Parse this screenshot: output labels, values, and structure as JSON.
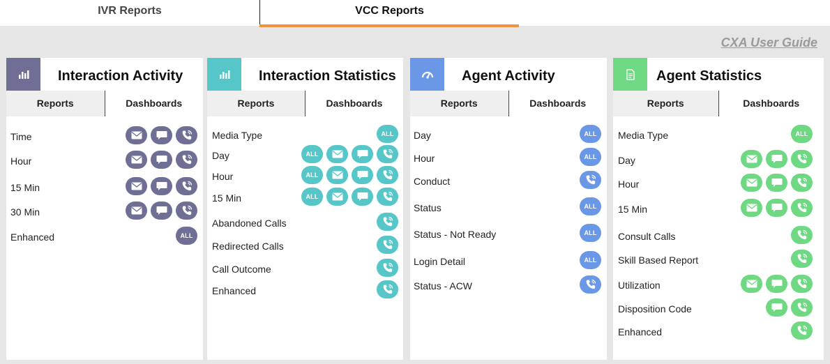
{
  "top_tabs": [
    "IVR Reports",
    "VCC Reports"
  ],
  "guide_link": "CXA User Guide",
  "subtabs": {
    "reports": "Reports",
    "dashboards": "Dashboards"
  },
  "colors": {
    "interaction_activity": "#6f6f95",
    "interaction_statistics": "#56c6c8",
    "agent_activity": "#6a97e6",
    "agent_statistics": "#6fd883",
    "active_tab_underline": "#f0923b"
  },
  "all_label": "ALL",
  "panels": [
    {
      "title": "Interaction Activity",
      "icon": "bar-chart-icon",
      "rows": [
        {
          "label": "Time",
          "buttons": [
            "email-icon",
            "chat-icon",
            "phone-icon"
          ]
        },
        {
          "label": "Hour",
          "buttons": [
            "email-icon",
            "chat-icon",
            "phone-icon"
          ]
        },
        {
          "label": "15 Min",
          "buttons": [
            "email-icon",
            "chat-icon",
            "phone-icon"
          ]
        },
        {
          "label": "30 Min",
          "buttons": [
            "email-icon",
            "chat-icon",
            "phone-icon"
          ]
        },
        {
          "label": "Enhanced",
          "buttons": [
            "all"
          ]
        }
      ]
    },
    {
      "title": "Interaction Statistics",
      "icon": "bar-chart-icon",
      "rows": [
        {
          "label": "Media Type",
          "buttons": [
            "all"
          ]
        },
        {
          "label": "Day",
          "buttons": [
            "all",
            "email-icon",
            "chat-icon",
            "phone-icon"
          ]
        },
        {
          "label": "Hour",
          "buttons": [
            "all",
            "email-icon",
            "chat-icon",
            "phone-icon"
          ]
        },
        {
          "label": "15 Min",
          "buttons": [
            "all",
            "email-icon",
            "chat-icon",
            "phone-icon"
          ]
        },
        {
          "label": "Abandoned Calls",
          "buttons": [
            "phone-icon"
          ]
        },
        {
          "label": "Redirected Calls",
          "buttons": [
            "phone-icon"
          ]
        },
        {
          "label": "Call Outcome",
          "buttons": [
            "phone-icon"
          ]
        },
        {
          "label": "Enhanced",
          "buttons": [
            "phone-icon"
          ]
        }
      ]
    },
    {
      "title": "Agent Activity",
      "icon": "gauge-icon",
      "rows": [
        {
          "label": "Day",
          "buttons": [
            "all"
          ]
        },
        {
          "label": "Hour",
          "buttons": [
            "all"
          ]
        },
        {
          "label": "Conduct",
          "buttons": [
            "phone-icon"
          ]
        },
        {
          "label": "Status",
          "buttons": [
            "all"
          ]
        },
        {
          "label": "Status - Not Ready",
          "buttons": [
            "all"
          ]
        },
        {
          "label": "Login Detail",
          "buttons": [
            "all"
          ]
        },
        {
          "label": "Status - ACW",
          "buttons": [
            "phone-icon"
          ]
        }
      ]
    },
    {
      "title": "Agent Statistics",
      "icon": "document-icon",
      "rows": [
        {
          "label": "Media Type",
          "buttons": [
            "all"
          ]
        },
        {
          "label": "Day",
          "buttons": [
            "email-icon",
            "chat-icon",
            "phone-icon"
          ]
        },
        {
          "label": "Hour",
          "buttons": [
            "email-icon",
            "chat-icon",
            "phone-icon"
          ]
        },
        {
          "label": "15 Min",
          "buttons": [
            "email-icon",
            "chat-icon",
            "phone-icon"
          ]
        },
        {
          "label": "Consult Calls",
          "buttons": [
            "phone-icon"
          ]
        },
        {
          "label": "Skill Based Report",
          "buttons": [
            "phone-icon"
          ]
        },
        {
          "label": "Utilization",
          "buttons": [
            "email-icon",
            "chat-icon",
            "phone-icon"
          ]
        },
        {
          "label": "Disposition Code",
          "buttons": [
            "chat-icon",
            "phone-icon"
          ]
        },
        {
          "label": "Enhanced",
          "buttons": [
            "phone-icon"
          ]
        }
      ]
    }
  ]
}
